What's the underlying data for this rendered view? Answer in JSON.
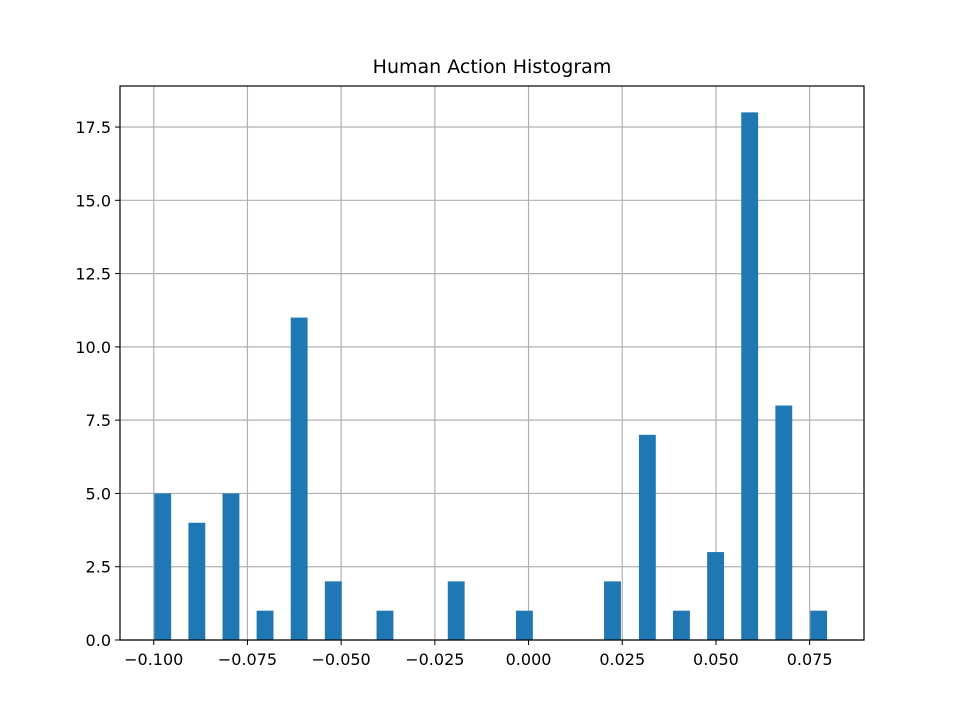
{
  "chart_data": {
    "type": "bar",
    "title": "Human Action Histogram",
    "xlabel": "",
    "ylabel": "",
    "xlim": [
      -0.109,
      0.0895
    ],
    "ylim": [
      0,
      18.9
    ],
    "grid": true,
    "bar_width": 0.0045,
    "bar_color": "#1f77b4",
    "x_ticks": [
      -0.1,
      -0.075,
      -0.05,
      -0.025,
      0.0,
      0.025,
      0.05,
      0.075
    ],
    "x_tick_labels": [
      "−0.100",
      "−0.075",
      "−0.050",
      "−0.025",
      "0.000",
      "0.025",
      "0.050",
      "0.075"
    ],
    "y_ticks": [
      0.0,
      2.5,
      5.0,
      7.5,
      10.0,
      12.5,
      15.0,
      17.5
    ],
    "y_tick_labels": [
      "0.0",
      "2.5",
      "5.0",
      "7.5",
      "10.0",
      "12.5",
      "15.0",
      "17.5"
    ],
    "x": [
      -0.0976,
      -0.0885,
      -0.0794,
      -0.0703,
      -0.0612,
      -0.0521,
      -0.0383,
      -0.0193,
      -0.0011,
      0.0224,
      0.0317,
      0.0408,
      0.0499,
      0.059,
      0.0681,
      0.0774
    ],
    "values": [
      5,
      4,
      5,
      1,
      11,
      2,
      1,
      2,
      1,
      2,
      7,
      1,
      3,
      18,
      8,
      1
    ]
  }
}
